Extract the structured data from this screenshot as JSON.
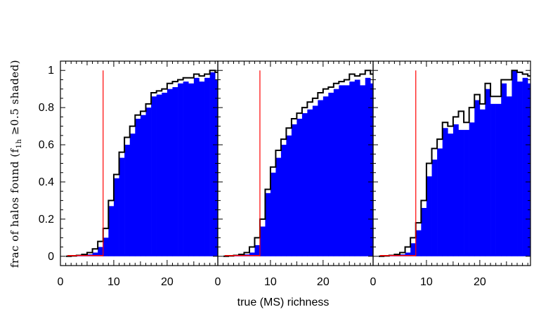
{
  "chart_data": {
    "type": "histogram-panels",
    "xlabel": "true (MS) richness",
    "ylabel": "frac of halos found (f",
    "ylabel_sub": "1h",
    "ylabel_tail": " ≥0.5 shaded)",
    "ylim": [
      -0.05,
      1.05
    ],
    "y_ticks": [
      0,
      0.2,
      0.4,
      0.6,
      0.8,
      1
    ],
    "y_tick_labels": [
      "0",
      "0.2",
      "0.4",
      "0.6",
      "0.8",
      "1"
    ],
    "x_ticks": [
      0,
      10,
      20
    ],
    "x_tick_labels": [
      "0",
      "10",
      "20"
    ],
    "bin_width": 1,
    "colors": {
      "fill": "#0000ff",
      "outline": "#000000",
      "cut": "#ff0000",
      "frame": "#000000"
    },
    "panels": [
      {
        "xlim": [
          0,
          29.5
        ],
        "cut_x": 8,
        "bin_start": 1,
        "outline": [
          0,
          0.002,
          0.005,
          0.01,
          0.02,
          0.04,
          0.08,
          0.15,
          0.3,
          0.44,
          0.56,
          0.64,
          0.7,
          0.76,
          0.78,
          0.82,
          0.88,
          0.89,
          0.9,
          0.93,
          0.94,
          0.95,
          0.96,
          0.96,
          0.98,
          0.97,
          0.98,
          1.0,
          0.99
        ],
        "shaded": [
          0,
          0.001,
          0.003,
          0.006,
          0.01,
          0.02,
          0.05,
          0.1,
          0.27,
          0.42,
          0.53,
          0.6,
          0.66,
          0.74,
          0.76,
          0.8,
          0.86,
          0.87,
          0.88,
          0.9,
          0.91,
          0.93,
          0.94,
          0.93,
          0.96,
          0.94,
          0.96,
          0.99,
          0.95
        ]
      },
      {
        "xlim": [
          0,
          29.5
        ],
        "cut_x": 8,
        "bin_start": 1,
        "outline": [
          0,
          0.002,
          0.005,
          0.01,
          0.02,
          0.05,
          0.1,
          0.2,
          0.36,
          0.48,
          0.57,
          0.63,
          0.69,
          0.74,
          0.77,
          0.8,
          0.83,
          0.85,
          0.88,
          0.9,
          0.91,
          0.93,
          0.94,
          0.95,
          0.98,
          0.97,
          0.98,
          1.0,
          0.98
        ],
        "shaded": [
          0,
          0.001,
          0.003,
          0.006,
          0.01,
          0.02,
          0.06,
          0.16,
          0.34,
          0.45,
          0.53,
          0.6,
          0.65,
          0.71,
          0.74,
          0.77,
          0.79,
          0.81,
          0.84,
          0.86,
          0.88,
          0.9,
          0.92,
          0.92,
          0.94,
          0.95,
          0.92,
          0.96,
          0.93
        ]
      },
      {
        "xlim": [
          0,
          29.5
        ],
        "cut_x": 8,
        "bin_start": 1,
        "outline": [
          0,
          0.002,
          0.005,
          0.01,
          0.02,
          0.05,
          0.1,
          0.18,
          0.3,
          0.5,
          0.58,
          0.63,
          0.72,
          0.7,
          0.75,
          0.78,
          0.72,
          0.8,
          0.87,
          0.82,
          0.93,
          0.86,
          0.86,
          0.95,
          0.95,
          1.0,
          0.99,
          0.98,
          0.97
        ],
        "shaded": [
          0,
          0.001,
          0.003,
          0.006,
          0.01,
          0.02,
          0.07,
          0.14,
          0.26,
          0.43,
          0.52,
          0.58,
          0.69,
          0.66,
          0.71,
          0.68,
          0.68,
          0.72,
          0.84,
          0.79,
          0.9,
          0.82,
          0.82,
          0.93,
          0.86,
          1.0,
          0.94,
          0.96,
          0.93
        ]
      }
    ]
  }
}
